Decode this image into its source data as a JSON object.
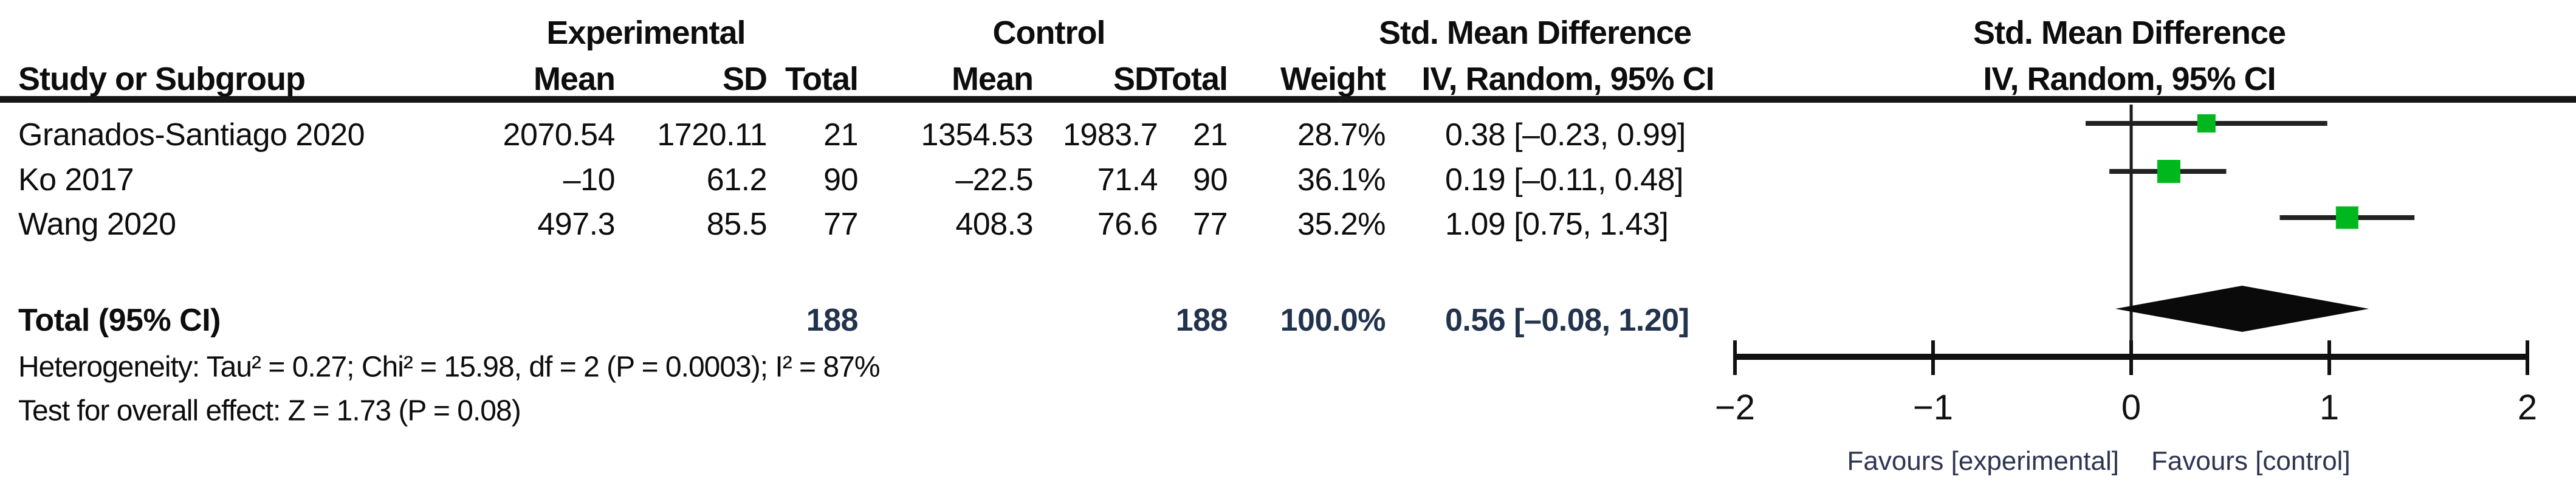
{
  "figure": {
    "group_header": {
      "experimental": "Experimental",
      "control": "Control",
      "smd_left": "Std. Mean Difference",
      "smd_right": "Std. Mean Difference"
    },
    "column_header": {
      "study": "Study or Subgroup",
      "exp_mean": "Mean",
      "exp_sd": "SD",
      "exp_total": "Total",
      "ctrl_mean": "Mean",
      "ctrl_sd": "SD",
      "ctrl_total": "Total",
      "weight": "Weight",
      "iv_left": "IV, Random, 95% CI",
      "iv_right": "IV, Random, 95% CI"
    },
    "studies": [
      {
        "name": "Granados-Santiago 2020",
        "exp_mean": "2070.54",
        "exp_sd": "1720.11",
        "exp_total": "21",
        "ctrl_mean": "1354.53",
        "ctrl_sd": "1983.7",
        "ctrl_total": "21",
        "weight": "28.7%",
        "ci_text": "0.38 [–0.23, 0.99]"
      },
      {
        "name": "Ko 2017",
        "exp_mean": "–10",
        "exp_sd": "61.2",
        "exp_total": "90",
        "ctrl_mean": "–22.5",
        "ctrl_sd": "71.4",
        "ctrl_total": "90",
        "weight": "36.1%",
        "ci_text": "0.19 [–0.11, 0.48]"
      },
      {
        "name": "Wang 2020",
        "exp_mean": "497.3",
        "exp_sd": "85.5",
        "exp_total": "77",
        "ctrl_mean": "408.3",
        "ctrl_sd": "76.6",
        "ctrl_total": "77",
        "weight": "35.2%",
        "ci_text": "1.09 [0.75, 1.43]"
      }
    ],
    "total_row": {
      "label": "Total (95% CI)",
      "exp_total": "188",
      "ctrl_total": "188",
      "weight": "100.0%",
      "ci_text": "0.56 [–0.08, 1.20]"
    },
    "footnotes": {
      "heterogeneity": "Heterogeneity: Tau² = 0.27; Chi² = 15.98, df = 2 (P = 0.0003); I² = 87%",
      "overall_effect": "Test for overall effect: Z = 1.73 (P = 0.08)"
    }
  },
  "chart_data": {
    "type": "scatter",
    "subtype": "forest-plot",
    "title": "Std. Mean Difference, IV, Random, 95% CI",
    "effect_measure": "Std. Mean Difference",
    "model": "IV, Random, 95% CI",
    "x_axis": {
      "min": -2,
      "max": 2,
      "tick_values": [
        -2,
        -1,
        0,
        1,
        2
      ],
      "tick_labels": [
        "-2",
        "-1",
        "0",
        "1",
        "2"
      ],
      "favours_left": "Favours [experimental]",
      "favours_right": "Favours [control]"
    },
    "points": [
      {
        "study": "Granados-Santiago 2020",
        "smd": 0.38,
        "ci_low": -0.23,
        "ci_high": 0.99,
        "weight_pct": 28.7
      },
      {
        "study": "Ko 2017",
        "smd": 0.19,
        "ci_low": -0.11,
        "ci_high": 0.48,
        "weight_pct": 36.1
      },
      {
        "study": "Wang 2020",
        "smd": 1.09,
        "ci_low": 0.75,
        "ci_high": 1.43,
        "weight_pct": 35.2
      }
    ],
    "diamond": {
      "label": "Total (95% CI)",
      "smd": 0.56,
      "ci_low": -0.08,
      "ci_high": 1.2,
      "weight_pct": 100.0
    }
  },
  "colors": {
    "square_green": "#00b81e",
    "diamond_black": "#0a0a0a",
    "ci_line": "#222222",
    "axis_line": "#111111",
    "zero_line": "#1c1c1c",
    "total_text": "#22334d",
    "favours_text": "#2c3552"
  }
}
